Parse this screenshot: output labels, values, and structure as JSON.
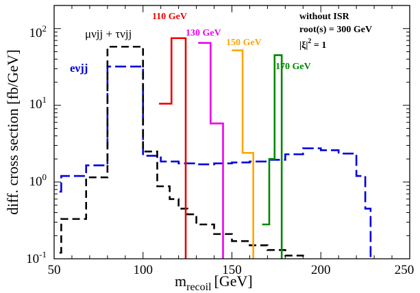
{
  "chart_data": {
    "type": "line",
    "xlabel_main": "m",
    "xlabel_sub": "recoil",
    "xlabel_unit": "[GeV]",
    "ylabel": "diff. cross section [fb/GeV]",
    "xlim": [
      50,
      250
    ],
    "ylim": [
      0.1,
      200
    ],
    "y_scale": "log",
    "x_ticks": [
      {
        "value": 50,
        "label": "50"
      },
      {
        "value": 100,
        "label": "100"
      },
      {
        "value": 150,
        "label": "150"
      },
      {
        "value": 200,
        "label": "200"
      },
      {
        "value": 250,
        "label": "250"
      }
    ],
    "y_ticks": [
      {
        "value": 0.1,
        "base": "10",
        "exp": "-1"
      },
      {
        "value": 1,
        "base": "10",
        "exp": "0"
      },
      {
        "value": 10,
        "base": "10",
        "exp": "1"
      },
      {
        "value": 100,
        "base": "10",
        "exp": "2"
      }
    ],
    "annotations": {
      "line1": "without ISR",
      "line2": "root(s) = 300 GeV",
      "line3_pre": "|ξ|",
      "line3_sup": "2",
      "line3_post": " = 1"
    },
    "series": [
      {
        "name": "eνjj",
        "color": "#0000dd",
        "style": "long-dash",
        "label_color": "#0000dd",
        "steps": [
          [
            53,
            0.75
          ],
          [
            54,
            1.2
          ],
          [
            68,
            1.65
          ],
          [
            80,
            32
          ],
          [
            100,
            2.2
          ],
          [
            110,
            1.85
          ],
          [
            120,
            1.75
          ],
          [
            130,
            1.7
          ],
          [
            140,
            1.75
          ],
          [
            150,
            1.8
          ],
          [
            160,
            1.85
          ],
          [
            170,
            1.95
          ],
          [
            180,
            2.3
          ],
          [
            190,
            2.75
          ],
          [
            200,
            2.6
          ],
          [
            210,
            2.35
          ],
          [
            220,
            1.2
          ],
          [
            225,
            0.45
          ],
          [
            228,
            0.1
          ]
        ]
      },
      {
        "name": "μνjj + τνjj",
        "color": "#000000",
        "style": "dash",
        "label_color": "#000000",
        "steps": [
          [
            53,
            0.12
          ],
          [
            54,
            0.33
          ],
          [
            68,
            1.15
          ],
          [
            80,
            58
          ],
          [
            100,
            2.5
          ],
          [
            108,
            0.88
          ],
          [
            115,
            0.6
          ],
          [
            120,
            0.45
          ],
          [
            125,
            0.38
          ],
          [
            130,
            0.28
          ],
          [
            140,
            0.21
          ],
          [
            150,
            0.17
          ],
          [
            160,
            0.15
          ],
          [
            170,
            0.13
          ],
          [
            180,
            0.11
          ],
          [
            190,
            0.1
          ]
        ]
      },
      {
        "name": "110 GeV",
        "color": "#ee0000",
        "style": "solid",
        "label_color": "#ee0000",
        "steps": [
          [
            109,
            10.5
          ],
          [
            116,
            75
          ],
          [
            124,
            0.1
          ]
        ]
      },
      {
        "name": "130 GeV",
        "color": "#ee00ee",
        "style": "solid",
        "label_color": "#ee00ee",
        "steps": [
          [
            131,
            65
          ],
          [
            138,
            5.8
          ],
          [
            145,
            0.1
          ]
        ]
      },
      {
        "name": "150 GeV",
        "color": "#ffa500",
        "style": "solid",
        "label_color": "#ffa500",
        "steps": [
          [
            150,
            52
          ],
          [
            156,
            2.4
          ],
          [
            162,
            0.1
          ]
        ]
      },
      {
        "name": "170 GeV",
        "color": "#008800",
        "style": "solid",
        "label_color": "#008800",
        "steps": [
          [
            167,
            0.28
          ],
          [
            171,
            2.0
          ],
          [
            174,
            45
          ],
          [
            178,
            0.1
          ]
        ]
      }
    ]
  }
}
